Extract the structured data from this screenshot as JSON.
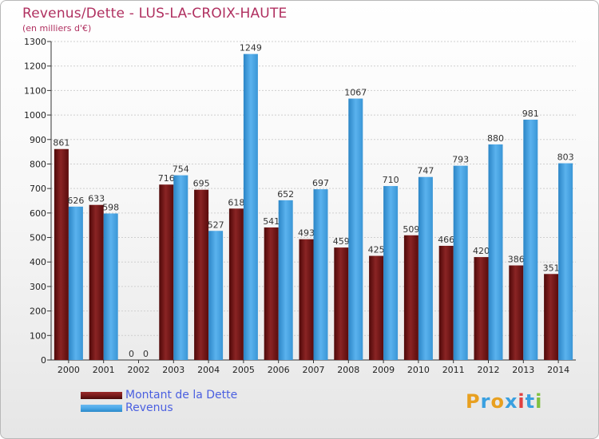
{
  "header": {
    "title": "Revenus/Dette - LUS-LA-CROIX-HAUTE",
    "subtitle": "(en milliers d'€)"
  },
  "logo": {
    "letters": [
      "P",
      "r",
      "o",
      "x",
      "i",
      "t",
      "i"
    ],
    "colors": [
      "#e8a020",
      "#3aa0e0",
      "#e8a020",
      "#3aa0e0",
      "#e04040",
      "#3aa0e0",
      "#80c040"
    ]
  },
  "colors": {
    "dette": "#7a1c1c",
    "revenus": "#4aa8e8"
  },
  "chart_data": {
    "type": "bar",
    "title": "Revenus/Dette - LUS-LA-CROIX-HAUTE",
    "ylabel": "(en milliers d'€)",
    "ylim": [
      0,
      1300
    ],
    "yticks": [
      0,
      100,
      200,
      300,
      400,
      500,
      600,
      700,
      800,
      900,
      1000,
      1100,
      1200,
      1300
    ],
    "grid": true,
    "legend_position": "bottom-left",
    "categories": [
      "2000",
      "2001",
      "2002",
      "2003",
      "2004",
      "2005",
      "2006",
      "2007",
      "2008",
      "2009",
      "2010",
      "2011",
      "2012",
      "2013",
      "2014"
    ],
    "series": [
      {
        "name": "Montant de la Dette",
        "values": [
          861,
          633,
          0,
          716,
          695,
          618,
          541,
          493,
          459,
          425,
          509,
          466,
          420,
          386,
          351
        ]
      },
      {
        "name": "Revenus",
        "values": [
          626,
          598,
          0,
          754,
          527,
          1249,
          652,
          697,
          1067,
          710,
          747,
          793,
          880,
          981,
          803
        ]
      }
    ]
  }
}
